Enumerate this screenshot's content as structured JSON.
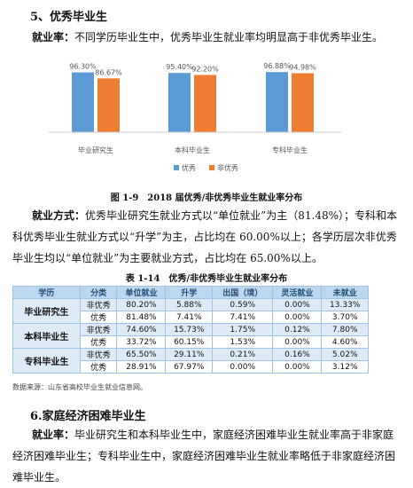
{
  "section5": {
    "heading": "5、优秀毕业生",
    "label": "就业率：",
    "text": "不同学历毕业生中，优秀毕业生就业率均明显高于非优秀毕业生。"
  },
  "chart_data": {
    "type": "bar",
    "categories": [
      "毕业研究生",
      "本科毕业生",
      "专科毕业生"
    ],
    "series": [
      {
        "name": "优秀",
        "color": "#5b9bd5",
        "values": [
          96.3,
          95.4,
          96.88
        ],
        "value_labels": [
          "96.30%",
          "95.40%",
          "96.88%"
        ]
      },
      {
        "name": "非优秀",
        "color": "#ed7d31",
        "values": [
          86.67,
          92.2,
          94.98
        ],
        "value_labels": [
          "86.67%",
          "92.20%",
          "94.98%"
        ]
      }
    ],
    "caption": "图 1-9　2018 届优秀/非优秀毕业生就业率分布",
    "legend": "bottom"
  },
  "para2": {
    "label": "就业方式：",
    "text": "优秀毕业研究生就业方式以“单位就业”为主（81.48%）；专科和本科优秀毕业生就业方式以“升学”为主，占比均在 60.00%以上；各学历层次非优秀毕业生均以“单位就业”为主要就业方式，占比均在 65.00%以上。"
  },
  "table": {
    "caption": "表 1-14　优秀/非优秀毕业生就业率分布",
    "header": [
      "学历",
      "分类",
      "单位就业",
      "升学",
      "出国（境）",
      "灵活就业",
      "未就业"
    ],
    "groups": [
      {
        "level": "毕业研究生",
        "rows": [
          [
            "非优秀",
            "80.20%",
            "5.88%",
            "0.59%",
            "0.00%",
            "13.33%"
          ],
          [
            "优秀",
            "81.48%",
            "7.41%",
            "7.41%",
            "0.00%",
            "3.70%"
          ]
        ]
      },
      {
        "level": "本科毕业生",
        "rows": [
          [
            "非优秀",
            "74.60%",
            "15.73%",
            "1.75%",
            "0.12%",
            "7.80%"
          ],
          [
            "优秀",
            "33.72%",
            "60.15%",
            "1.53%",
            "0.00%",
            "4.60%"
          ]
        ]
      },
      {
        "level": "专科毕业生",
        "rows": [
          [
            "非优秀",
            "65.50%",
            "29.11%",
            "0.21%",
            "0.16%",
            "5.02%"
          ],
          [
            "优秀",
            "28.91%",
            "67.97%",
            "0.00%",
            "0.00%",
            "3.12%"
          ]
        ]
      }
    ],
    "source": "数据来源：山东省高校毕业生就业信息网。"
  },
  "section6": {
    "heading": "6.家庭经济困难毕业生",
    "label": "就业率：",
    "text": "毕业研究生和本科毕业生中，家庭经济困难毕业生就业率高于非家庭经济困难毕业生；专科毕业生中，家庭经济困难毕业生就业率略低于非家庭经济困难毕业生。"
  }
}
